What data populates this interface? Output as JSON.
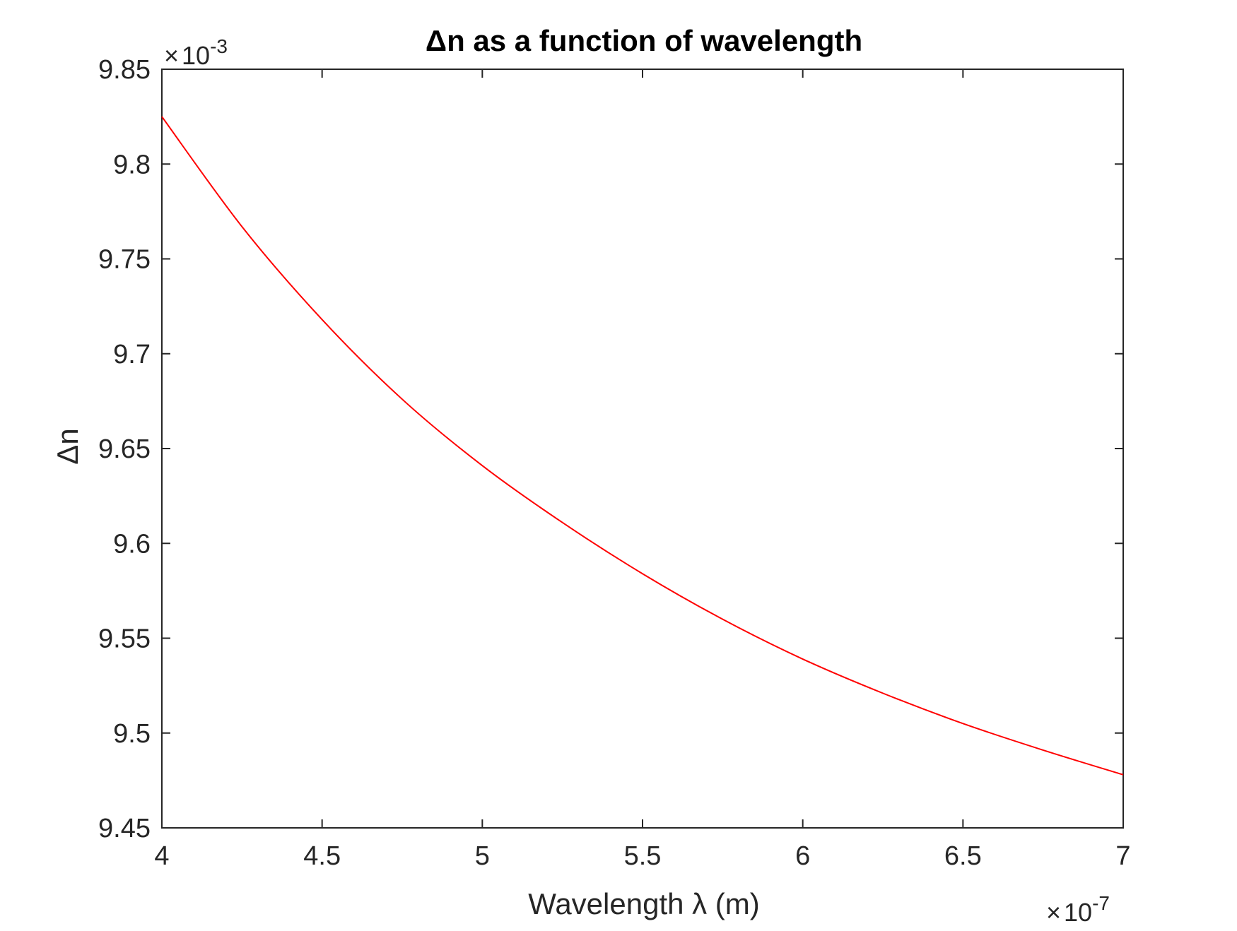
{
  "chart_data": {
    "type": "line",
    "title": "Δn as a function of wavelength",
    "xlabel": "Wavelength λ (m)",
    "ylabel": "Δn",
    "x_exponent_label": "10",
    "x_exponent": "-7",
    "y_exponent_label": "10",
    "y_exponent": "-3",
    "multiplier_symbol": "×",
    "xlim": [
      4e-07,
      7e-07
    ],
    "ylim": [
      0.00945,
      0.00985
    ],
    "xticks": [
      4e-07,
      4.5e-07,
      5e-07,
      5.5e-07,
      6e-07,
      6.5e-07,
      7e-07
    ],
    "xtick_labels": [
      "4",
      "4.5",
      "5",
      "5.5",
      "6",
      "6.5",
      "7"
    ],
    "yticks": [
      0.00945,
      0.0095,
      0.00955,
      0.0096,
      0.00965,
      0.0097,
      0.00975,
      0.0098,
      0.00985
    ],
    "ytick_labels": [
      "9.45",
      "9.5",
      "9.55",
      "9.6",
      "9.65",
      "9.7",
      "9.75",
      "9.8",
      "9.85"
    ],
    "grid": false,
    "colors": {
      "series": "#ff0000",
      "axis": "#262626"
    },
    "series": [
      {
        "x": [
          4e-07,
          4.25e-07,
          4.5e-07,
          4.75e-07,
          5e-07,
          5.25e-07,
          5.5e-07,
          5.75e-07,
          6e-07,
          6.25e-07,
          6.5e-07,
          6.75e-07,
          7e-07
        ],
        "y": [
          0.009825,
          0.009767,
          0.009718,
          0.009676,
          0.009641,
          0.009611,
          0.009584,
          0.00956,
          0.009539,
          0.009521,
          0.009505,
          0.009491,
          0.009478
        ]
      }
    ]
  }
}
